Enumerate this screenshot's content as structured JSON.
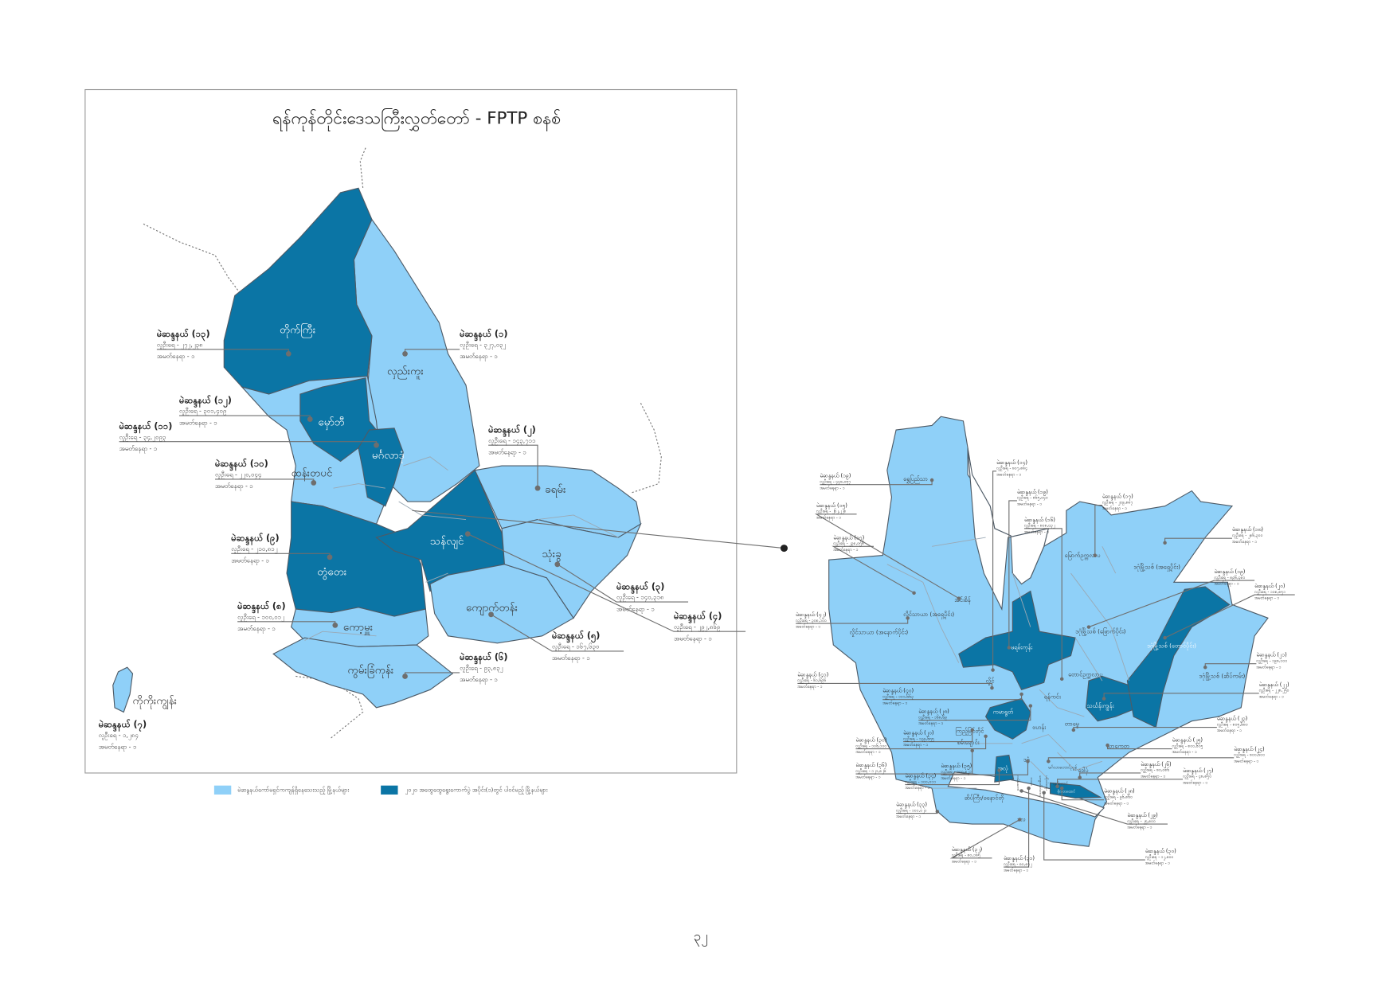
{
  "title": "ရန်ကုန်တိုင်းဒေသကြီးလွှတ်တော် - FPTP စနစ်",
  "page_number": "၃၂",
  "colors": {
    "pending_townships": "#8fd0f8",
    "phase1_townships": "#0b75a5",
    "outline": "#4d5a66"
  },
  "legend": [
    {
      "label": "မဲဆန္ဒနယ်ကော်မရှင်ကကျန်ရှိနေသေးသည့် မြို့နယ်များ",
      "color": "#8fd0f8"
    },
    {
      "label": "၂၀၂၀ အထွေထွေရွေးကောက်ပွဲ အပိုင်း(၁)တွင် ပါဝင်မည့် မြို့နယ်များ",
      "color": "#0b75a5"
    }
  ],
  "left_map": {
    "townships": [
      {
        "name": "တိုက်ကြီး",
        "status": "phase1"
      },
      {
        "name": "လှည်းကူး",
        "status": "pending"
      },
      {
        "name": "မှော်ဘီ",
        "status": "phase1"
      },
      {
        "name": "မင်္ဂလာဒုံ",
        "status": "phase1"
      },
      {
        "name": "ထန်းတပင်",
        "status": "pending"
      },
      {
        "name": "တွံတေး",
        "status": "phase1"
      },
      {
        "name": "ကော့မှူး",
        "status": "pending"
      },
      {
        "name": "ကွမ်းခြံကုန်း",
        "status": "pending"
      },
      {
        "name": "ကိုကိုးကျွန်း",
        "status": "pending"
      },
      {
        "name": "သန်လျင်",
        "status": "phase1"
      },
      {
        "name": "ခရမ်း",
        "status": "pending"
      },
      {
        "name": "သုံးခွ",
        "status": "pending"
      },
      {
        "name": "ကျောက်တန်း",
        "status": "pending"
      }
    ],
    "constituencies": [
      {
        "title": "မဲဆန္ဒနယ် (၁၃)",
        "population": "လူဦးရေ - ၂၇၂,၂၃၈",
        "seats": "အမတ်နေရာ - ၁"
      },
      {
        "title": "မဲဆန္ဒနယ် (၁)",
        "population": "လူဦးရေ - ၃၂၇,၀၃၂",
        "seats": "အမတ်နေရာ - ၁"
      },
      {
        "title": "မဲဆန္ဒနယ် (၁၂)",
        "population": "လူဦးရေ - ၃၀၁,၄၀၉",
        "seats": "အမတ်နေရာ - ၁"
      },
      {
        "title": "မဲဆန္ဒနယ် (၁၁)",
        "population": "လူဦးရေ - ၃၄,၂၀၉၃",
        "seats": "အမတ်နေရာ - ၁"
      },
      {
        "title": "မဲဆန္ဒနယ် (၂)",
        "population": "လူဦးရေ - ၁၄၃,၇၁၁",
        "seats": "အမတ်နေရာ - ၁"
      },
      {
        "title": "မဲဆန္ဒနယ် (၁၀)",
        "population": "လူဦးရေ - ၂၂၀,၀၄၄",
        "seats": "အမတ်နေရာ - ၁"
      },
      {
        "title": "မဲဆန္ဒနယ် (၉)",
        "population": "လူဦးရေ - ၂၁၀,၈၁၂",
        "seats": "အမတ်နေရာ - ၁"
      },
      {
        "title": "မဲဆန္ဒနယ် (၈)",
        "population": "လူဦးရေ - ၁၀၀,၀၁၂",
        "seats": "အမတ်နေရာ - ၁"
      },
      {
        "title": "မဲဆန္ဒနယ် (၆)",
        "population": "လူဦးရေ - ၉၃,၈၃၂",
        "seats": "အမတ်နေရာ - ၁"
      },
      {
        "title": "မဲဆန္ဒနယ် (၇)",
        "population": "လူဦးရေ - ၁,၂၈၄",
        "seats": "အမတ်နေရာ - ၁"
      },
      {
        "title": "မဲဆန္ဒနယ် (၃)",
        "population": "လူဦးရေ - ၁၄၀,၃၁၈",
        "seats": "အမတ်နေရာ - ၁"
      },
      {
        "title": "မဲဆန္ဒနယ် (၄)",
        "population": "လူဦးရေ - ၂၉၂,၈၆၉",
        "seats": "အမတ်နေရာ - ၁"
      },
      {
        "title": "မဲဆန္ဒနယ် (၅)",
        "population": "လူဦးရေ - ၁၆၇,၆၃၀",
        "seats": "အမတ်နေရာ - ၁"
      }
    ]
  },
  "right_map": {
    "townships": [
      {
        "name": "ရွှေပြည်သာ",
        "status": "pending"
      },
      {
        "name": "လှိုင်သာယာ (အရှေ့ပိုင်း)",
        "status": "pending"
      },
      {
        "name": "လှိုင်သာယာ (အနောက်ပိုင်း)",
        "status": "pending"
      },
      {
        "name": "အင်းစိန်",
        "status": "pending"
      },
      {
        "name": "မရမ်းကုန်း",
        "status": "phase1"
      },
      {
        "name": "လှိုင်",
        "status": "pending"
      },
      {
        "name": "မြောက်ဥက္ကလာပ",
        "status": "pending"
      },
      {
        "name": "ဒဂုံမြို့သစ် (အရှေ့ပိုင်း)",
        "status": "pending"
      },
      {
        "name": "ဒဂုံမြို့သစ် (မြောက်ပိုင်း)",
        "status": "pending"
      },
      {
        "name": "ဒဂုံမြို့သစ် (တောင်ပိုင်း)",
        "status": "phase1"
      },
      {
        "name": "ဒဂုံမြို့သစ် (ဆိပ်ကမ်း)",
        "status": "pending"
      },
      {
        "name": "တောင်ဥက္ကလာပ",
        "status": "pending"
      },
      {
        "name": "ရန်ကင်း",
        "status": "pending"
      },
      {
        "name": "သင်္ဃန်းကျွန်း",
        "status": "phase1"
      },
      {
        "name": "ကမာရွတ်",
        "status": "phase1"
      },
      {
        "name": "ဗဟန်း",
        "status": "pending"
      },
      {
        "name": "တာမွေ",
        "status": "pending"
      },
      {
        "name": "ကြည့်မြင်တိုင်",
        "status": "pending"
      },
      {
        "name": "စမ်းချောင်း",
        "status": "pending"
      },
      {
        "name": "ဒဂုံ",
        "status": "pending"
      },
      {
        "name": "အလုံ",
        "status": "phase1"
      },
      {
        "name": "မင်္ဂလာတောင်ညွန့်",
        "status": "pending"
      },
      {
        "name": "ဒေါပုံ",
        "status": "pending"
      },
      {
        "name": "သာကေတ",
        "status": "pending"
      },
      {
        "name": "ဆိပ်ကြီး/ခနောင်တို",
        "status": "pending"
      },
      {
        "name": "ဒလ",
        "status": "pending"
      },
      {
        "name": "လမ်းမတော်",
        "status": "pending"
      },
      {
        "name": "လသာ",
        "status": "pending"
      },
      {
        "name": "ကျောက်တံတား",
        "status": "pending"
      },
      {
        "name": "ပန်းဘဲတန်း",
        "status": "pending"
      },
      {
        "name": "ပုဇွန်တောင်",
        "status": "pending"
      },
      {
        "name": "ဗိုလ်တထောင်",
        "status": "phase1"
      }
    ],
    "constituencies": [
      {
        "title": "မဲဆန္ဒနယ် (၁၉)",
        "population": "လူဦးရေ - ၄၄၈,၀၅၇",
        "seats": "အမတ်နေရာ - ၁"
      },
      {
        "title": "မဲဆန္ဒနယ် (၁၅)",
        "population": "လူဦးရေ - ၂၆၂,၂၂၈",
        "seats": "အမတ်နေရာ - ၁"
      },
      {
        "title": "မဲဆန္ဒနယ် (၁၇)",
        "population": "လူဦးရေ - ၂၃၈,၀၅၆",
        "seats": "အမတ်နေရာ - ၁"
      },
      {
        "title": "မဲဆန္ဒနယ် (၄၂)",
        "population": "လူဦးရေ - ၃၀၈,၁၀၀",
        "seats": "အမတ်နေရာ - ၁"
      },
      {
        "title": "မဲဆန္ဒနယ် (၄၁)",
        "population": "လူဦးရေ - ၆၁,၆၉၆",
        "seats": "အမတ်နေရာ - ၁"
      },
      {
        "title": "မဲဆန္ဒနယ် (၄၀)",
        "population": "လူဦးရေ - ၁၀၁,၆၆၃",
        "seats": "အမတ်နေရာ - ၁"
      },
      {
        "title": "မဲဆန္ဒနယ် (၂၈)",
        "population": "လူဦးရေ - ၁၆၈,၆၉",
        "seats": "အမတ်နေရာ - ၁"
      },
      {
        "title": "မဲဆန္ဒနယ် (၂၀)",
        "population": "လူဦးရေ - ၁၃၉,၆၅၅",
        "seats": "အမတ်နေရာ - ၁"
      },
      {
        "title": "မဲဆန္ဒနယ် (၃၀)",
        "population": "လူဦးရေ - ၁၀၆,၁၀၀",
        "seats": "အမတ်နေရာ - ၁"
      },
      {
        "title": "မဲဆန္ဒနယ် (၃၆)",
        "population": "လူဦးရေ - ၁၂၁,၈၂၆",
        "seats": "အမတ်နေရာ - ၁"
      },
      {
        "title": "မဲဆန္ဒနယ် (၃၄)",
        "population": "လူဦးရေ - ၁၀၀,၀၁၁",
        "seats": "အမတ်နေရာ - ၁"
      },
      {
        "title": "မဲဆန္ဒနယ် (၃၅)",
        "population": "လူဦးရေ - ၁၀၀,၈၂၁",
        "seats": "အမတ်နေရာ - ၁"
      },
      {
        "title": "မဲဆန္ဒနယ် (၃၃)",
        "population": "လူဦးရေ - ၁၀၁,၀၂၁",
        "seats": "အမတ်နေရာ - ၁"
      },
      {
        "title": "မဲဆန္ဒနယ် (၃၂)",
        "population": "လူဦးရေ - ၈၀,၁၈၅",
        "seats": "အမတ်နေရာ - ၁"
      },
      {
        "title": "မဲဆန္ဒနယ် (၃၁)",
        "population": "လူဦးရေ - ၈၀,၈၇၂",
        "seats": "အမတ်နေရာ - ၁"
      },
      {
        "title": "မဲဆန္ဒနယ် (၁၄)",
        "population": "လူဦးရေ - ၈၀၇,၈၈၄",
        "seats": "အမတ်နေရာ - ၁"
      },
      {
        "title": "မဲဆန္ဒနယ် (၁၉)",
        "population": "လူဦးရေ - ၈၆၅,၀၄၀",
        "seats": "အမတ်နေရာ - ၁"
      },
      {
        "title": "မဲဆန္ဒနယ် (၁၆)",
        "population": "လူဦးရေ - ၈၀၈,၀၃၂",
        "seats": "အမတ်နေရာ - ၁"
      },
      {
        "title": "မဲဆန္ဒနယ် (၁၇)",
        "population": "လူဦးရေ - ၂၀၉,၈၈၇",
        "seats": "အမတ်နေရာ - ၁"
      },
      {
        "title": "မဲဆန္ဒနယ် (၁၈)",
        "population": "လူဦးရေ - ၂၈၆,၃၀၀",
        "seats": "အမတ်နေရာ - ၁"
      },
      {
        "title": "မဲဆန္ဒနယ် (၁၉)",
        "population": "လူဦးရေ - ၈၉၆,၄၈၀",
        "seats": "အမတ်နေရာ - ၁"
      },
      {
        "title": "မဲဆန္ဒနယ် (၂၀)",
        "population": "လူဦးရေ - ၁၀၈,၈၅၁",
        "seats": "အမတ်နေရာ - ၁"
      },
      {
        "title": "မဲဆန္ဒနယ် (၂၁)",
        "population": "လူဦးရေ - ၁၉၈,၁၀၀",
        "seats": "အမတ်နေရာ - ၁"
      },
      {
        "title": "မဲဆန္ဒနယ် (၂၂)",
        "population": "လူဦးရေ - ၂၂၈,၂၅၀",
        "seats": "အမတ်နေရာ - ၁"
      },
      {
        "title": "မဲဆန္ဒနယ် (၂၃)",
        "population": "လူဦးရေ - ၈၀၅,၆၈၀",
        "seats": "အမတ်နေရာ - ၁"
      },
      {
        "title": "မဲဆန္ဒနယ် (၂၅)",
        "population": "လူဦးရေ - ၈၀၀,၆၁၅",
        "seats": "အမတ်နေရာ - ၁"
      },
      {
        "title": "မဲဆန္ဒနယ် (၂၄)",
        "population": "လူဦးရေ - ၈၀၀,၆၀၀",
        "seats": "အမတ်နေရာ - ၁"
      },
      {
        "title": "မဲဆန္ဒနယ် (၂၆)",
        "population": "လူဦးရေ - ၈၀,၀၈၆",
        "seats": "အမတ်နေရာ - ၁"
      },
      {
        "title": "မဲဆန္ဒနယ် (၂၇)",
        "population": "လူဦးရေ - ၄၈,၈၅၀",
        "seats": "အမတ်နေရာ - ၁"
      },
      {
        "title": "မဲဆန္ဒနယ် (၂၈)",
        "population": "လူဦးရေ - ၉၆,၈၆၀",
        "seats": "အမတ်နေရာ - ၁"
      },
      {
        "title": "မဲဆန္ဒနယ် (၂၉)",
        "population": "လူဦးရေ - ၂၅,၈၀၀",
        "seats": "အမတ်နေရာ - ၁"
      },
      {
        "title": "မဲဆန္ဒနယ် (၃၀)",
        "population": "လူဦးရေ - ၁၂,၈၀၀",
        "seats": "အမတ်နေရာ - ၁"
      }
    ]
  }
}
